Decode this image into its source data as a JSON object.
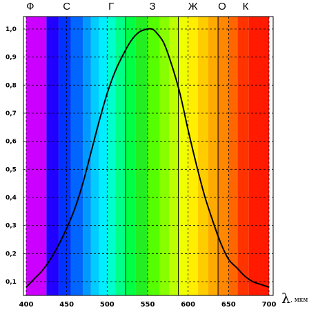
{
  "chart_data": {
    "type": "line",
    "title": "",
    "xlabel": "λ",
    "xlabel_unit": ", мкм",
    "ylabel": "",
    "xlim": [
      400,
      700
    ],
    "ylim": [
      0.07,
      1.05
    ],
    "x_ticks": [
      "400",
      "450",
      "500",
      "550",
      "600",
      "650",
      "700"
    ],
    "x_tick_values": [
      400,
      450,
      500,
      550,
      600,
      650,
      700
    ],
    "y_ticks": [
      "0,1",
      "0,2",
      "0,3",
      "0,4",
      "0,5",
      "0,6",
      "0,7",
      "0,8",
      "0,9",
      "1,0"
    ],
    "y_tick_values": [
      0.1,
      0.2,
      0.3,
      0.4,
      0.5,
      0.6,
      0.7,
      0.8,
      0.9,
      1.0
    ],
    "grid": true,
    "color_bands": [
      {
        "label": "Ф",
        "label_x": 405,
        "segments": [
          {
            "from": 400,
            "to": 425,
            "color": "#cc00ff"
          }
        ]
      },
      {
        "label": "С",
        "label_x": 450,
        "segments": [
          {
            "from": 425,
            "to": 440,
            "color": "#2200ff"
          },
          {
            "from": 440,
            "to": 455,
            "color": "#0033ff"
          },
          {
            "from": 455,
            "to": 470,
            "color": "#0066ff"
          },
          {
            "from": 470,
            "to": 480,
            "color": "#0099ff"
          }
        ]
      },
      {
        "label": "Г",
        "label_x": 505,
        "segments": [
          {
            "from": 480,
            "to": 490,
            "color": "#00ccff"
          },
          {
            "from": 490,
            "to": 500,
            "color": "#00eeff"
          },
          {
            "from": 500,
            "to": 510,
            "color": "#00ffcc"
          },
          {
            "from": 510,
            "to": 523,
            "color": "#00ff88"
          }
        ]
      },
      {
        "label": "З",
        "label_x": 556,
        "segments": [
          {
            "from": 523,
            "to": 535,
            "color": "#00ff44"
          },
          {
            "from": 535,
            "to": 550,
            "color": "#22ee22"
          },
          {
            "from": 550,
            "to": 565,
            "color": "#55ff00"
          },
          {
            "from": 565,
            "to": 577,
            "color": "#88ff00"
          }
        ]
      },
      {
        "label": "Ж",
        "label_x": 606,
        "segments": [
          {
            "from": 577,
            "to": 588,
            "color": "#bbff00"
          },
          {
            "from": 588,
            "to": 600,
            "color": "#eeff00"
          },
          {
            "from": 600,
            "to": 612,
            "color": "#ffee00"
          },
          {
            "from": 612,
            "to": 625,
            "color": "#ffcc00"
          }
        ]
      },
      {
        "label": "О",
        "label_x": 642,
        "segments": [
          {
            "from": 625,
            "to": 637,
            "color": "#ffaa00"
          },
          {
            "from": 637,
            "to": 650,
            "color": "#ff8800"
          },
          {
            "from": 650,
            "to": 661,
            "color": "#ff6600"
          }
        ]
      },
      {
        "label": "К",
        "label_x": 671,
        "segments": [
          {
            "from": 661,
            "to": 675,
            "color": "#ff3300"
          },
          {
            "from": 675,
            "to": 700,
            "color": "#ff1a00"
          }
        ]
      }
    ],
    "band_boundaries": [
      523,
      588,
      637
    ],
    "series": [
      {
        "color": "#000000",
        "x": [
          400,
          410,
          420,
          430,
          440,
          450,
          460,
          470,
          480,
          490,
          500,
          510,
          520,
          530,
          540,
          550,
          555,
          560,
          570,
          580,
          590,
          600,
          610,
          620,
          630,
          640,
          650,
          660,
          670,
          680,
          690,
          700
        ],
        "values": [
          0.08,
          0.11,
          0.14,
          0.18,
          0.23,
          0.29,
          0.36,
          0.45,
          0.56,
          0.67,
          0.77,
          0.85,
          0.91,
          0.96,
          0.99,
          1.0,
          1.0,
          0.99,
          0.95,
          0.87,
          0.77,
          0.64,
          0.52,
          0.41,
          0.32,
          0.24,
          0.18,
          0.15,
          0.12,
          0.1,
          0.09,
          0.08
        ]
      }
    ]
  }
}
